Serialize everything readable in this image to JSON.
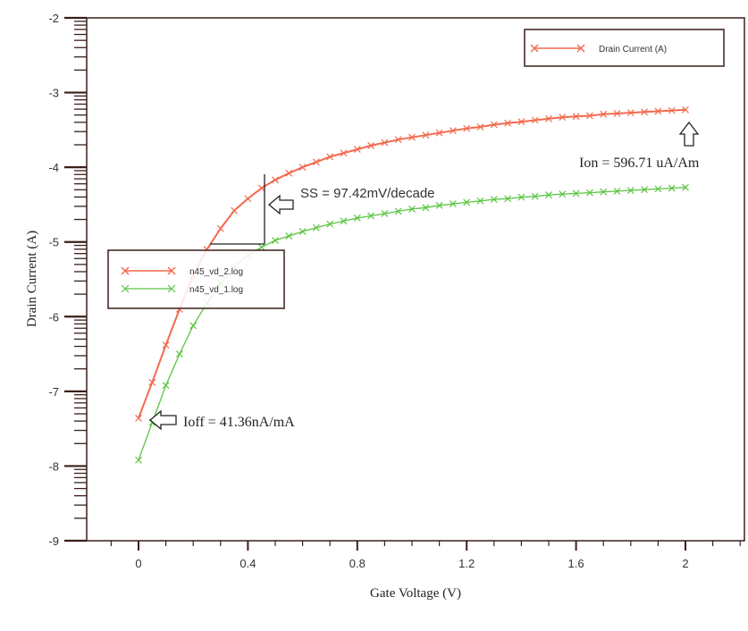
{
  "chart_data": {
    "type": "line",
    "title": "",
    "xlabel": "Gate Voltage (V)",
    "ylabel": "Drain Current (A)",
    "xlim": [
      -0.18,
      2.2
    ],
    "ylim": [
      -9,
      -2
    ],
    "x_ticks": [
      0,
      0.4,
      0.8,
      1.2,
      1.6,
      2
    ],
    "x_tick_labels": [
      "0",
      "0.4",
      "0.8",
      "1.2",
      "1.6",
      "2"
    ],
    "y_ticks": [
      -2,
      -3,
      -4,
      -5,
      -6,
      -7,
      -8,
      -9
    ],
    "y_tick_labels": [
      "-2",
      "-3",
      "-4",
      "-5",
      "-6",
      "-7",
      "-8",
      "-9"
    ],
    "grid": false,
    "x": [
      0,
      0.05,
      0.1,
      0.15,
      0.2,
      0.25,
      0.3,
      0.35,
      0.4,
      0.45,
      0.5,
      0.55,
      0.6,
      0.65,
      0.7,
      0.75,
      0.8,
      0.85,
      0.9,
      0.95,
      1.0,
      1.05,
      1.1,
      1.15,
      1.2,
      1.25,
      1.3,
      1.35,
      1.4,
      1.45,
      1.5,
      1.55,
      1.6,
      1.65,
      1.7,
      1.75,
      1.8,
      1.85,
      1.9,
      1.95,
      2.0
    ],
    "series": [
      {
        "name": "n45_vd_2.log",
        "color": "#f26a4f",
        "marker": "x",
        "values": [
          -7.36,
          -6.88,
          -6.38,
          -5.9,
          -5.45,
          -5.1,
          -4.82,
          -4.58,
          -4.42,
          -4.28,
          -4.17,
          -4.08,
          -4.0,
          -3.93,
          -3.86,
          -3.81,
          -3.76,
          -3.71,
          -3.67,
          -3.63,
          -3.6,
          -3.57,
          -3.54,
          -3.51,
          -3.48,
          -3.46,
          -3.43,
          -3.41,
          -3.39,
          -3.37,
          -3.35,
          -3.33,
          -3.32,
          -3.31,
          -3.29,
          -3.28,
          -3.27,
          -3.26,
          -3.25,
          -3.24,
          -3.23
        ]
      },
      {
        "name": "n45_vd_1.log",
        "color": "#5cc443",
        "marker": "x",
        "values": [
          -7.92,
          -7.42,
          -6.92,
          -6.5,
          -6.12,
          -5.82,
          -5.55,
          -5.33,
          -5.18,
          -5.07,
          -4.98,
          -4.92,
          -4.86,
          -4.81,
          -4.76,
          -4.72,
          -4.68,
          -4.65,
          -4.62,
          -4.59,
          -4.56,
          -4.54,
          -4.51,
          -4.49,
          -4.47,
          -4.45,
          -4.43,
          -4.42,
          -4.4,
          -4.39,
          -4.37,
          -4.36,
          -4.35,
          -4.34,
          -4.33,
          -4.32,
          -4.31,
          -4.3,
          -4.29,
          -4.28,
          -4.27
        ]
      }
    ],
    "legends": [
      {
        "position": "top-right",
        "entries": [
          {
            "label": "Drain Current (A)",
            "color": "#f26a4f",
            "marker": "x"
          }
        ]
      },
      {
        "position": "middle-left",
        "entries": [
          {
            "label": "n45_vd_2.log",
            "color": "#f26a4f",
            "marker": "x"
          },
          {
            "label": "n45_vd_1.log",
            "color": "#5cc443",
            "marker": "x"
          }
        ]
      }
    ],
    "annotations": [
      {
        "text": "SS = 97.42mV/decade",
        "arrow": "left"
      },
      {
        "text": "Ion = 596.71 uA/Am",
        "arrow": "up"
      },
      {
        "text": "Ioff  = 41.36nA/mA",
        "arrow": "left"
      }
    ]
  },
  "labels": {
    "xlabel": "Gate Voltage (V)",
    "ylabel": "Drain Current (A)",
    "legend_top": "Drain Current (A)",
    "legend_series_1": "n45_vd_2.log",
    "legend_series_2": "n45_vd_1.log",
    "ss_annotation": "SS = 97.42mV/decade",
    "ion_annotation": "Ion = 596.71 uA/Am",
    "ioff_annotation": "Ioff  = 41.36nA/mA"
  },
  "colors": {
    "axis": "#3a1f1a",
    "series_1": "#f26a4f",
    "series_2": "#5cc443"
  }
}
